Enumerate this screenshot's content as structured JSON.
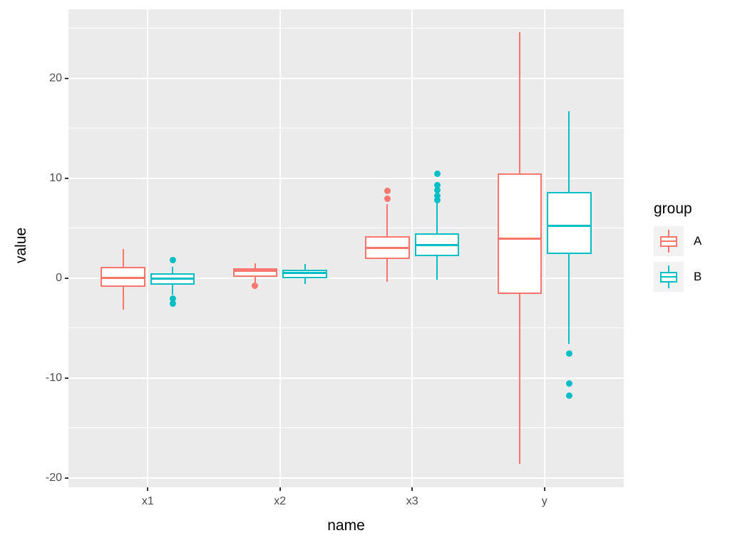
{
  "chart_data": {
    "type": "boxplot",
    "title": "",
    "xlabel": "name",
    "ylabel": "value",
    "categories": [
      "x1",
      "x2",
      "x3",
      "y"
    ],
    "groups": [
      {
        "name": "A",
        "color": "#F8766D",
        "stats": [
          {
            "whisker_low": -3.2,
            "q1": -0.9,
            "median": 0.0,
            "q3": 1.1,
            "whisker_high": 2.9,
            "outliers": []
          },
          {
            "whisker_low": -0.45,
            "q1": 0.1,
            "median": 0.7,
            "q3": 1.0,
            "whisker_high": 1.5,
            "outliers": [
              -0.8
            ]
          },
          {
            "whisker_low": -0.4,
            "q1": 1.9,
            "median": 3.0,
            "q3": 4.2,
            "whisker_high": 7.4,
            "outliers": [
              7.9,
              8.7
            ]
          },
          {
            "whisker_low": -18.6,
            "q1": -1.6,
            "median": 3.9,
            "q3": 10.5,
            "whisker_high": 24.6,
            "outliers": []
          }
        ]
      },
      {
        "name": "B",
        "color": "#00BFC4",
        "stats": [
          {
            "whisker_low": -1.7,
            "q1": -0.7,
            "median": -0.1,
            "q3": 0.5,
            "whisker_high": 1.1,
            "outliers": [
              1.8,
              -2.1,
              -2.6
            ]
          },
          {
            "whisker_low": -0.6,
            "q1": 0.0,
            "median": 0.5,
            "q3": 0.8,
            "whisker_high": 1.4,
            "outliers": []
          },
          {
            "whisker_low": -0.2,
            "q1": 2.2,
            "median": 3.3,
            "q3": 4.5,
            "whisker_high": 7.5,
            "outliers": [
              7.8,
              8.2,
              8.8,
              9.3,
              10.4
            ]
          },
          {
            "whisker_low": -6.6,
            "q1": 2.4,
            "median": 5.2,
            "q3": 8.6,
            "whisker_high": 16.7,
            "outliers": [
              -7.6,
              -10.6,
              -11.8
            ]
          }
        ]
      }
    ],
    "y_major_ticks": [
      20,
      10,
      0,
      -10,
      -20
    ],
    "y_minor_ticks": [
      25,
      15,
      5,
      -5,
      -15
    ],
    "ylim": [
      -20.96,
      26.9
    ],
    "grid": "major-and-minor-horizontal, major-vertical",
    "legend": {
      "title": "group",
      "position": "right",
      "entries": [
        "A",
        "B"
      ]
    }
  },
  "colors": {
    "group_A": "#F8766D",
    "group_B": "#00BFC4",
    "panel_bg": "#EBEBEB",
    "gridline": "#FFFFFF",
    "tick_text": "#4D4D4D",
    "axis_title_text": "#000000",
    "legend_key_bg": "#F2F2F2",
    "tick_mark": "#333333"
  }
}
